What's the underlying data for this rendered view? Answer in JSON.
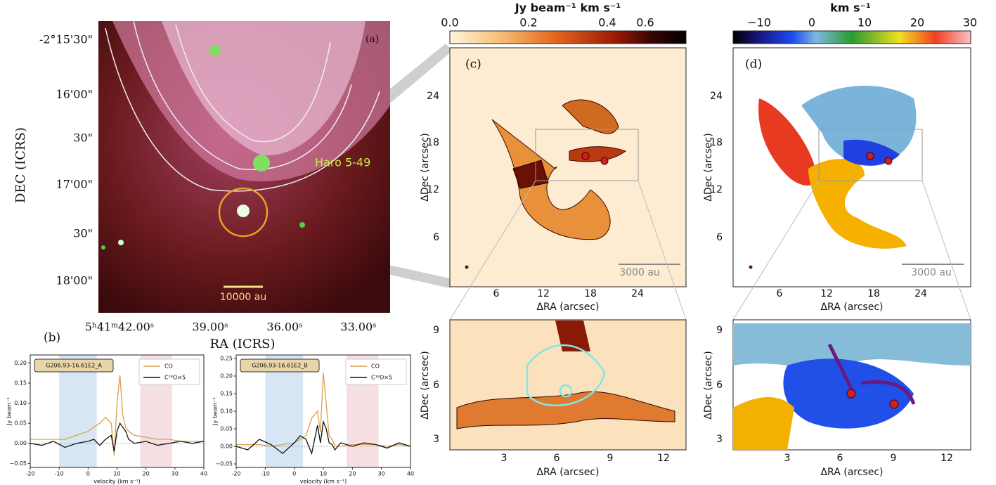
{
  "panel_a": {
    "label": "(a)",
    "dec_label": "DEC (ICRS)",
    "ra_label": "RA (ICRS)",
    "dec_ticks": [
      "-2°15'30\"",
      "16'00\"",
      "30\"",
      "17'00\"",
      "30\"",
      "18'00\""
    ],
    "ra_ticks": [
      "5ʰ41ᵐ42.00ˢ",
      "39.00ˢ",
      "36.00ˢ",
      "33.00ˢ"
    ],
    "source": "Haro 5-49",
    "scale": "10000 au"
  },
  "panel_b": {
    "label": "(b)"
  },
  "panel_c": {
    "label": "(c)",
    "colorbar_label": "Jy beam⁻¹ km s⁻¹",
    "colorbar_ticks": [
      "0.0",
      "0.2",
      "0.4",
      "0.6"
    ],
    "xlabel": "ΔRA (arcsec)",
    "ylabel": "ΔDec (arcsec)",
    "xticks": [
      "6",
      "12",
      "18",
      "24"
    ],
    "yticks": [
      "24",
      "18",
      "12",
      "6"
    ],
    "scale": "3000 au",
    "inset": {
      "xlabel": "ΔRA (arcsec)",
      "ylabel": "ΔDec (arcsec)",
      "xticks": [
        "3",
        "6",
        "9",
        "12"
      ],
      "yticks": [
        "9",
        "6",
        "3"
      ]
    }
  },
  "panel_d": {
    "label": "(d)",
    "colorbar_label": "km s⁻¹",
    "colorbar_ticks": [
      "−10",
      "0",
      "10",
      "20",
      "30"
    ],
    "xlabel": "ΔRA (arcsec)",
    "ylabel": "ΔDec (arcsec)",
    "xticks": [
      "6",
      "12",
      "18",
      "24"
    ],
    "yticks": [
      "24",
      "18",
      "12",
      "6"
    ],
    "scale": "3000 au",
    "inset": {
      "xlabel": "ΔRA (arcsec)",
      "ylabel": "ΔDec (arcsec)",
      "xticks": [
        "3",
        "6",
        "9",
        "12"
      ],
      "yticks": [
        "9",
        "6",
        "3"
      ]
    }
  },
  "chart_data": [
    {
      "type": "line",
      "title": "G206.93-16.61E2_A",
      "xlabel": "velocity (km s⁻¹)",
      "ylabel": "Jy beam⁻¹",
      "x": [
        -20,
        -16,
        -12,
        -8,
        -4,
        0,
        2,
        4,
        6,
        8,
        9,
        10,
        11,
        12,
        13,
        14,
        16,
        20,
        24,
        28,
        32,
        36,
        40
      ],
      "series": [
        {
          "name": "CO",
          "color": "#d9a04a",
          "values": [
            0.01,
            0.01,
            0.01,
            0.01,
            0.02,
            0.03,
            0.04,
            0.05,
            0.065,
            0.05,
            -0.03,
            0.1,
            0.17,
            0.07,
            0.04,
            0.03,
            0.02,
            0.015,
            0.01,
            0.01,
            0.005,
            0.005,
            0.005
          ]
        },
        {
          "name": "C¹⁸O×5",
          "color": "#111111",
          "values": [
            0,
            -0.005,
            0.005,
            -0.01,
            0,
            0.005,
            0.01,
            -0.005,
            0.01,
            0.02,
            -0.02,
            0.03,
            0.05,
            0.04,
            0.03,
            0.01,
            0,
            0.005,
            -0.005,
            0,
            0.005,
            0,
            0.005
          ]
        }
      ],
      "bands": [
        {
          "range": [
            -10,
            3
          ],
          "color": "#d6e6f4"
        },
        {
          "range": [
            18,
            29
          ],
          "color": "#f6dfe3"
        }
      ],
      "xlim": [
        -20,
        40
      ],
      "xticks": [
        -20,
        -10,
        0,
        10,
        20,
        30,
        40
      ],
      "ylim": [
        -0.06,
        0.22
      ],
      "yticks": [
        {
          "value": -0.05,
          "label": "−0.05"
        },
        {
          "value": 0,
          "label": "0.00"
        },
        {
          "value": 0.05,
          "label": "0.05"
        },
        {
          "value": 0.1,
          "label": "0.10"
        },
        {
          "value": 0.15,
          "label": "0.15"
        },
        {
          "value": 0.2,
          "label": "0.20"
        }
      ]
    },
    {
      "type": "line",
      "title": "G206.93-16.61E2_B",
      "xlabel": "velocity (km s⁻¹)",
      "ylabel": "Jy beam⁻¹",
      "x": [
        -20,
        -16,
        -12,
        -8,
        -4,
        0,
        2,
        4,
        6,
        8,
        9,
        10,
        11,
        12,
        13,
        14,
        16,
        20,
        24,
        28,
        32,
        36,
        40
      ],
      "series": [
        {
          "name": "CO",
          "color": "#d9a04a",
          "values": [
            0.005,
            0.005,
            0.005,
            0,
            0.005,
            0.01,
            0.02,
            0.03,
            0.08,
            0.1,
            0.04,
            0.21,
            0.12,
            0.03,
            0.02,
            0,
            0,
            0.005,
            0.005,
            0.005,
            0,
            0.005,
            0
          ]
        },
        {
          "name": "C¹⁸O×5",
          "color": "#111111",
          "values": [
            0,
            -0.01,
            0.02,
            0.005,
            -0.02,
            0.01,
            0.03,
            0.02,
            -0.02,
            0.06,
            0.01,
            0.07,
            0.05,
            0.01,
            0.005,
            -0.01,
            0.01,
            0,
            0.01,
            0.005,
            -0.005,
            0.01,
            0
          ]
        }
      ],
      "bands": [
        {
          "range": [
            -10,
            3
          ],
          "color": "#d6e6f4"
        },
        {
          "range": [
            18,
            29
          ],
          "color": "#f6dfe3"
        }
      ],
      "xlim": [
        -20,
        40
      ],
      "xticks": [
        -20,
        -10,
        0,
        10,
        20,
        30,
        40
      ],
      "ylim": [
        -0.06,
        0.26
      ],
      "yticks": [
        {
          "value": -0.05,
          "label": "−0.05"
        },
        {
          "value": 0,
          "label": "0.00"
        },
        {
          "value": 0.05,
          "label": "0.05"
        },
        {
          "value": 0.1,
          "label": "0.10"
        },
        {
          "value": 0.15,
          "label": "0.15"
        },
        {
          "value": 0.2,
          "label": "0.20"
        },
        {
          "value": 0.25,
          "label": "0.25"
        }
      ]
    }
  ]
}
